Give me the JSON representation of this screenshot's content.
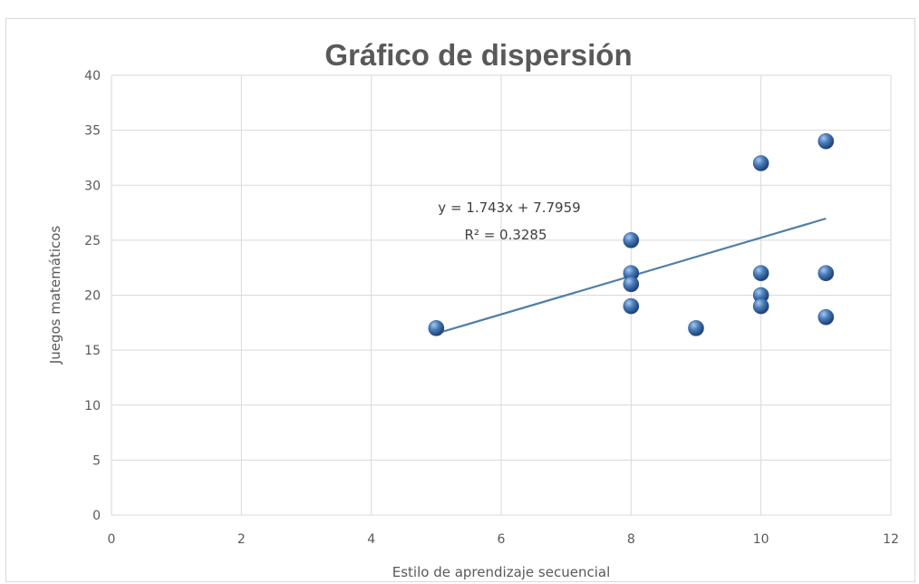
{
  "chart_data": {
    "type": "scatter",
    "title": "Gráfico de dispersión",
    "xlabel": "Estilo de aprendizaje secuencial",
    "ylabel": "Juegos matemáticos",
    "xlim": [
      0,
      12
    ],
    "ylim": [
      0,
      40
    ],
    "xticks": [
      0,
      2,
      4,
      6,
      8,
      10,
      12
    ],
    "yticks": [
      0,
      5,
      10,
      15,
      20,
      25,
      30,
      35,
      40
    ],
    "grid": true,
    "series": [
      {
        "points": [
          {
            "x": 5,
            "y": 17
          },
          {
            "x": 8,
            "y": 25
          },
          {
            "x": 8,
            "y": 22
          },
          {
            "x": 8,
            "y": 21
          },
          {
            "x": 8,
            "y": 19
          },
          {
            "x": 9,
            "y": 17
          },
          {
            "x": 10,
            "y": 32
          },
          {
            "x": 10,
            "y": 22
          },
          {
            "x": 10,
            "y": 20
          },
          {
            "x": 10,
            "y": 19
          },
          {
            "x": 11,
            "y": 34
          },
          {
            "x": 11,
            "y": 22
          },
          {
            "x": 11,
            "y": 18
          }
        ],
        "color": "#4a7ebb"
      }
    ],
    "trendline": {
      "slope": 1.743,
      "intercept": 7.7959,
      "x_range": [
        5,
        11
      ],
      "color": "#4f7fa8",
      "equation": "y = 1.743x + 7.7959",
      "r2_label": "R² = 0.3285"
    }
  }
}
